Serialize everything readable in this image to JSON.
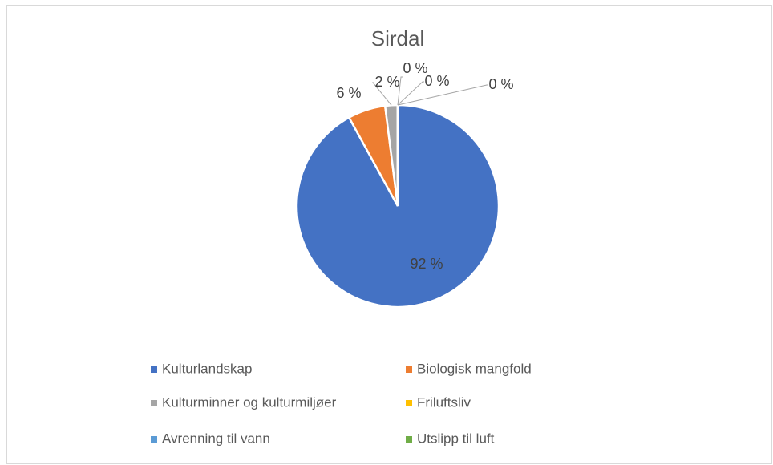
{
  "chart_data": {
    "type": "pie",
    "title": "Sirdal",
    "categories": [
      "Kulturlandskap",
      "Biologisk mangfold",
      "Kulturminner og kulturmiljøer",
      "Friluftsliv",
      "Avrenning til vann",
      "Utslipp til luft"
    ],
    "values": [
      92,
      6,
      2,
      0,
      0,
      0
    ],
    "value_labels": [
      "92 %",
      "6 %",
      "2 %",
      "0 %",
      "0 %",
      "0 %"
    ],
    "colors": [
      "#4472c4",
      "#ed7d31",
      "#a5a5a5",
      "#ffc000",
      "#5b9bd5",
      "#70ad47"
    ],
    "legend": "bottom"
  }
}
